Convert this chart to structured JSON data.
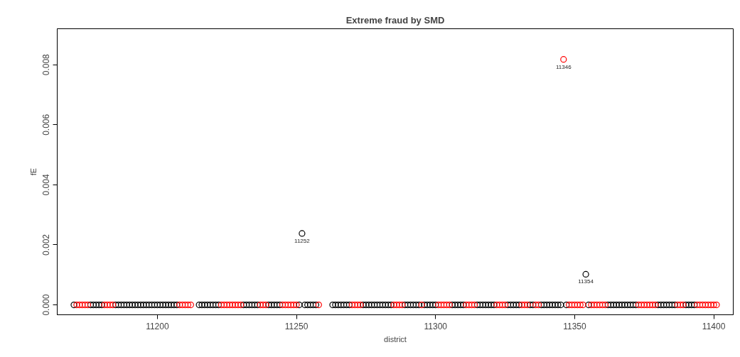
{
  "chart_data": {
    "type": "scatter",
    "title": "Extreme fraud by SMD",
    "xlabel": "district",
    "ylabel": "fE",
    "xlim": [
      11164,
      11407
    ],
    "ylim": [
      -0.00033,
      0.0092
    ],
    "xticks": [
      11200,
      11250,
      11300,
      11350,
      11400
    ],
    "yticks": [
      {
        "value": 0,
        "label": "0.000"
      },
      {
        "value": 0.002,
        "label": "0.002"
      },
      {
        "value": 0.004,
        "label": "0.004"
      },
      {
        "value": 0.006,
        "label": "0.006"
      },
      {
        "value": 0.008,
        "label": "0.008"
      }
    ],
    "grid": false,
    "marker": "circle",
    "series": [
      {
        "color": "#000000",
        "x": [
          11170,
          11176,
          11177,
          11178,
          11179,
          11180,
          11185,
          11186,
          11187,
          11188,
          11189,
          11190,
          11191,
          11192,
          11193,
          11194,
          11195,
          11196,
          11197,
          11198,
          11199,
          11200,
          11201,
          11202,
          11203,
          11204,
          11205,
          11206,
          11207,
          11215,
          11216,
          11217,
          11218,
          11219,
          11220,
          11221,
          11222,
          11231,
          11232,
          11233,
          11234,
          11235,
          11236,
          11240,
          11241,
          11242,
          11243,
          11244,
          11251,
          11252,
          11253,
          11254,
          11255,
          11256,
          11257,
          11263,
          11264,
          11265,
          11266,
          11267,
          11268,
          11269,
          11274,
          11275,
          11276,
          11277,
          11278,
          11279,
          11280,
          11281,
          11282,
          11283,
          11284,
          11289,
          11290,
          11291,
          11292,
          11293,
          11294,
          11296,
          11297,
          11298,
          11299,
          11300,
          11306,
          11307,
          11308,
          11309,
          11310,
          11315,
          11316,
          11317,
          11318,
          11319,
          11320,
          11321,
          11326,
          11327,
          11328,
          11329,
          11330,
          11334,
          11335,
          11338,
          11339,
          11340,
          11341,
          11342,
          11343,
          11344,
          11345,
          11347,
          11354,
          11355,
          11362,
          11363,
          11364,
          11365,
          11366,
          11367,
          11368,
          11369,
          11370,
          11371,
          11372,
          11380,
          11381,
          11382,
          11383,
          11384,
          11385,
          11386,
          11390,
          11391,
          11392,
          11393
        ],
        "values": [
          0,
          0,
          0,
          0,
          0,
          0,
          0,
          0,
          0,
          0,
          0,
          0,
          0,
          0,
          0,
          0,
          0,
          0,
          0,
          0,
          0,
          0,
          0,
          0,
          0,
          0,
          0,
          0,
          0,
          0,
          0,
          0,
          0,
          0,
          0,
          0,
          0,
          0,
          0,
          0,
          0,
          0,
          0,
          0,
          0,
          0,
          0,
          0,
          0,
          0.00238,
          0,
          0,
          0,
          0,
          0,
          0,
          0,
          0,
          0,
          0,
          0,
          0,
          0,
          0,
          0,
          0,
          0,
          0,
          0,
          0,
          0,
          0,
          0,
          0,
          0,
          0,
          0,
          0,
          0,
          0,
          0,
          0,
          0,
          0,
          0,
          0,
          0,
          0,
          0,
          0,
          0,
          0,
          0,
          0,
          0,
          0,
          0,
          0,
          0,
          0,
          0,
          0,
          0,
          0,
          0,
          0,
          0,
          0,
          0,
          0,
          0,
          0,
          0.00102,
          0,
          0,
          0,
          0,
          0,
          0,
          0,
          0,
          0,
          0,
          0,
          0,
          0,
          0,
          0,
          0,
          0,
          0,
          0,
          0,
          0,
          0,
          0
        ]
      },
      {
        "color": "#ff0000",
        "x": [
          11171,
          11172,
          11173,
          11174,
          11175,
          11181,
          11182,
          11183,
          11184,
          11208,
          11209,
          11210,
          11211,
          11212,
          11223,
          11224,
          11225,
          11226,
          11227,
          11228,
          11229,
          11230,
          11237,
          11238,
          11239,
          11245,
          11246,
          11247,
          11248,
          11249,
          11250,
          11258,
          11270,
          11271,
          11272,
          11273,
          11285,
          11286,
          11287,
          11288,
          11295,
          11301,
          11302,
          11303,
          11304,
          11305,
          11311,
          11312,
          11313,
          11314,
          11322,
          11323,
          11324,
          11325,
          11331,
          11332,
          11333,
          11336,
          11337,
          11346,
          11348,
          11349,
          11350,
          11351,
          11352,
          11353,
          11356,
          11357,
          11358,
          11359,
          11360,
          11361,
          11373,
          11374,
          11375,
          11376,
          11377,
          11378,
          11379,
          11387,
          11388,
          11389,
          11394,
          11395,
          11396,
          11397,
          11398,
          11399,
          11400,
          11401
        ],
        "values": [
          0,
          0,
          0,
          0,
          0,
          0,
          0,
          0,
          0,
          0,
          0,
          0,
          0,
          0,
          0,
          0,
          0,
          0,
          0,
          0,
          0,
          0,
          0,
          0,
          0,
          0,
          0,
          0,
          0,
          0,
          0,
          0,
          0,
          0,
          0,
          0,
          0,
          0,
          0,
          0,
          0,
          0,
          0,
          0,
          0,
          0,
          0,
          0,
          0,
          0,
          0,
          0,
          0,
          0,
          0,
          0,
          0,
          0,
          0,
          0.00818,
          0,
          0,
          0,
          0,
          0,
          0,
          0,
          0,
          0,
          0,
          0,
          0,
          0,
          0,
          0,
          0,
          0,
          0,
          0,
          0,
          0,
          0,
          0,
          0,
          0,
          0,
          0,
          0,
          0,
          0
        ]
      }
    ],
    "annotations": [
      {
        "text": "11252",
        "x": 11252,
        "y": 0.00238
      },
      {
        "text": "11346",
        "x": 11346,
        "y": 0.00818
      },
      {
        "text": "11354",
        "x": 11354,
        "y": 0.00102
      }
    ]
  }
}
